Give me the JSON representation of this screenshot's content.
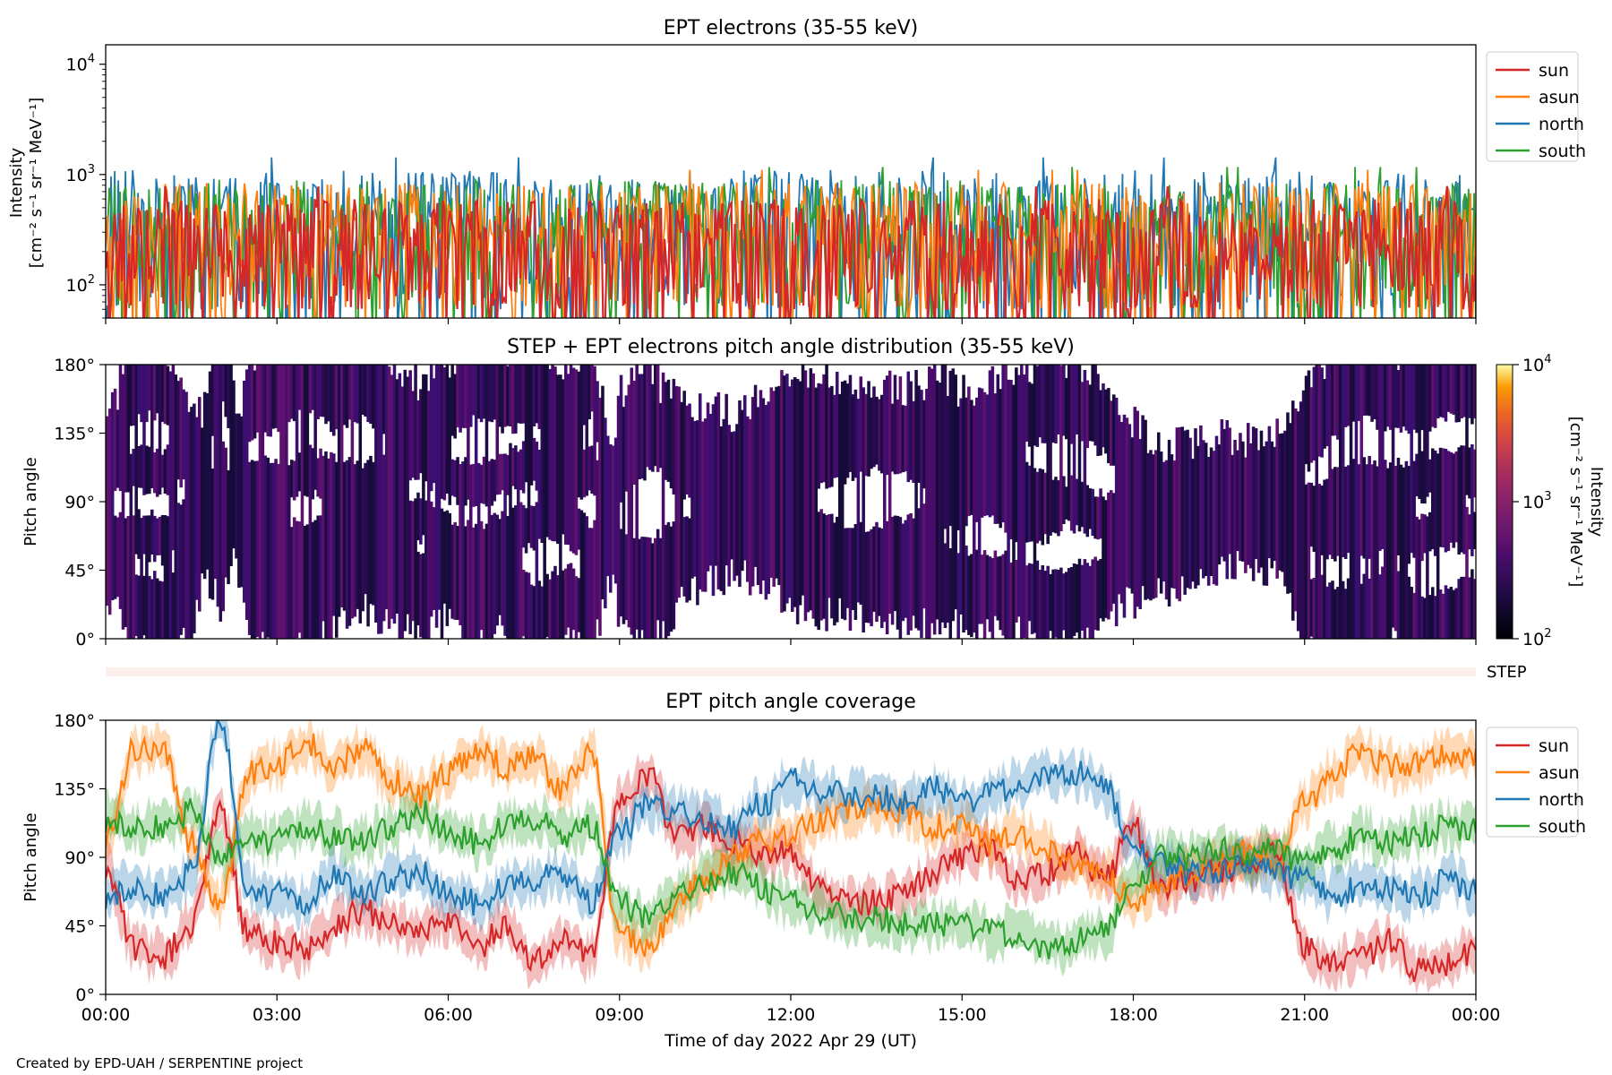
{
  "figure": {
    "credit": "Created by EPD-UAH / SERPENTINE project",
    "xlabel": "Time of day 2022 Apr 29 (UT)",
    "x_ticks": [
      "00:00",
      "03:00",
      "06:00",
      "09:00",
      "12:00",
      "15:00",
      "18:00",
      "21:00",
      "00:00"
    ],
    "x_range_hours": [
      0,
      24
    ]
  },
  "chart_data": [
    {
      "id": "panel1",
      "type": "line",
      "title": "EPT electrons (35-55 keV)",
      "ylabel": [
        "Intensity",
        "[cm⁻² s⁻¹ sr⁻¹ MeV⁻¹]"
      ],
      "y_scale": "log",
      "ylim": [
        50,
        15000
      ],
      "y_ticks": [
        {
          "value": 100,
          "base": "10",
          "exp": "2"
        },
        {
          "value": 1000,
          "base": "10",
          "exp": "3"
        },
        {
          "value": 10000,
          "base": "10",
          "exp": "4"
        }
      ],
      "legend_position": "outside-right-top",
      "series": [
        {
          "name": "sun",
          "color": "#d62728",
          "typical": [
            100,
            600
          ]
        },
        {
          "name": "asun",
          "color": "#ff7f0e",
          "typical": [
            100,
            850
          ]
        },
        {
          "name": "north",
          "color": "#1f77b4",
          "typical": [
            100,
            1100
          ]
        },
        {
          "name": "south",
          "color": "#2ca02c",
          "typical": [
            100,
            900
          ]
        }
      ]
    },
    {
      "id": "panel2",
      "type": "heatmap",
      "title": "STEP + EPT electrons pitch angle distribution (35-55 keV)",
      "ylabel": "Pitch angle",
      "ylim": [
        0,
        180
      ],
      "y_ticks": [
        "0°",
        "45°",
        "90°",
        "135°",
        "180°"
      ],
      "colorbar": {
        "label": "Intensity",
        "units": "[cm⁻² s⁻¹ sr⁻¹ MeV⁻¹]",
        "scale": "log",
        "range": [
          100,
          10000
        ],
        "ticks": [
          {
            "base": "10",
            "exp": "2"
          },
          {
            "base": "10",
            "exp": "3"
          },
          {
            "base": "10",
            "exp": "4"
          }
        ],
        "colormap": "inferno"
      },
      "typical_intensity": 300
    },
    {
      "id": "step_strip",
      "type": "heatmap",
      "label": "STEP",
      "color": "#fdf0ec"
    },
    {
      "id": "panel3",
      "type": "line",
      "title": "EPT pitch angle coverage",
      "ylabel": "Pitch angle",
      "ylim": [
        0,
        180
      ],
      "y_ticks": [
        "0°",
        "45°",
        "90°",
        "135°",
        "180°"
      ],
      "legend_position": "outside-right-top",
      "x_hours": [
        0,
        0.5,
        1,
        1.5,
        2,
        2.5,
        3,
        3.5,
        4,
        4.5,
        5,
        5.5,
        6,
        6.5,
        7,
        7.5,
        8,
        8.5,
        9,
        9.5,
        10,
        10.5,
        11,
        11.5,
        12,
        12.5,
        13,
        13.5,
        14,
        14.5,
        15,
        15.5,
        16,
        16.5,
        17,
        17.5,
        18,
        18.5,
        19,
        19.5,
        20,
        20.5,
        21,
        21.5,
        22,
        22.5,
        23,
        23.5,
        24
      ],
      "series": [
        {
          "name": "sun",
          "color": "#d62728",
          "values": [
            85,
            30,
            25,
            45,
            120,
            40,
            35,
            30,
            45,
            55,
            45,
            40,
            50,
            30,
            45,
            20,
            35,
            25,
            125,
            145,
            105,
            110,
            100,
            90,
            95,
            70,
            60,
            60,
            65,
            80,
            90,
            95,
            75,
            80,
            95,
            75,
            110,
            70,
            75,
            80,
            85,
            95,
            30,
            20,
            25,
            35,
            15,
            20,
            30
          ]
        },
        {
          "name": "asun",
          "color": "#ff7f0e",
          "values": [
            105,
            160,
            160,
            100,
            60,
            145,
            150,
            165,
            150,
            160,
            140,
            130,
            145,
            160,
            150,
            155,
            135,
            160,
            40,
            30,
            60,
            75,
            90,
            100,
            105,
            115,
            120,
            125,
            120,
            110,
            110,
            100,
            105,
            95,
            85,
            80,
            60,
            75,
            80,
            85,
            95,
            85,
            125,
            145,
            160,
            150,
            150,
            160,
            155
          ]
        },
        {
          "name": "north",
          "color": "#1f77b4",
          "values": [
            65,
            70,
            65,
            80,
            180,
            70,
            65,
            60,
            80,
            65,
            75,
            80,
            65,
            60,
            70,
            75,
            80,
            60,
            105,
            125,
            120,
            115,
            110,
            125,
            140,
            135,
            130,
            130,
            125,
            135,
            125,
            130,
            140,
            145,
            145,
            135,
            100,
            85,
            80,
            80,
            85,
            80,
            75,
            65,
            70,
            70,
            65,
            75,
            70
          ]
        },
        {
          "name": "south",
          "color": "#2ca02c",
          "values": [
            115,
            110,
            110,
            120,
            90,
            105,
            100,
            110,
            105,
            100,
            110,
            120,
            105,
            100,
            110,
            115,
            105,
            110,
            60,
            50,
            65,
            75,
            80,
            70,
            60,
            55,
            50,
            50,
            45,
            45,
            45,
            40,
            40,
            30,
            35,
            40,
            75,
            90,
            90,
            95,
            90,
            95,
            85,
            95,
            105,
            100,
            105,
            110,
            110
          ]
        }
      ]
    }
  ]
}
